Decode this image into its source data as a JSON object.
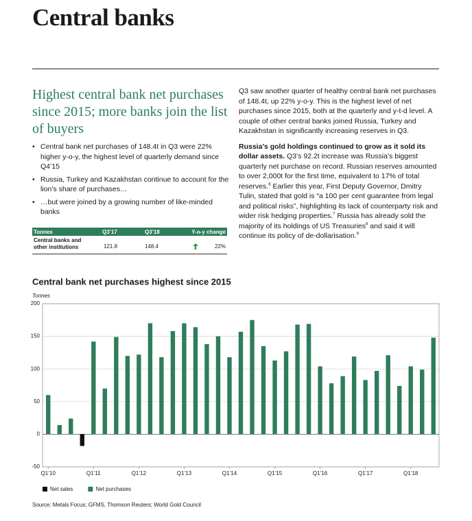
{
  "header": {
    "title": "Central banks"
  },
  "intro": {
    "heading": "Highest central bank net purchases since 2015; more banks join the list of buyers",
    "bullets": [
      "Central bank net purchases of 148.4t in Q3 were 22% higher y-o-y, the highest level of quarterly demand since Q4’15",
      "Russia, Turkey and Kazakhstan continue to account for the lion’s share of purchases…",
      "…but were joined by a growing number of like-minded banks"
    ]
  },
  "table": {
    "header": [
      "Tonnes",
      "Q3’17",
      "Q3’18",
      "Y-o-y change"
    ],
    "rows": [
      [
        "Central banks and other institutions",
        "121.8",
        "148.4",
        "22%"
      ]
    ]
  },
  "body": {
    "paragraphs": [
      [
        {
          "text": "Q3 saw another quarter of healthy central bank net purchases of 148.4t, up 22% y-o-y. This is the highest level of net purchases since 2015, both at the quarterly and y-t-d level. A couple of other central banks joined Russia, Turkey and Kazakhstan in significantly increasing reserves in Q3."
        }
      ],
      [
        {
          "text": "Russia’s gold holdings continued to grow as it sold its dollar assets.",
          "bold": true
        },
        {
          "text": " Q3’s 92.2t increase was Russia’s biggest quarterly net purchase on record. Russian reserves amounted to over 2,000t for the first time, equivalent to 17% of total reserves."
        },
        {
          "text": "6",
          "sup": true
        },
        {
          "text": " Earlier this year, First Deputy Governor, Dmitry Tulin, stated that gold is “a 100 per cent guarantee from legal and political risks”, highlighting its lack of counterparty risk and wider risk hedging properties."
        },
        {
          "text": "7",
          "sup": true
        },
        {
          "text": " Russia has already sold the majority of its holdings of US Treasuries"
        },
        {
          "text": "8",
          "sup": true
        },
        {
          "text": " and said it will continue its policy of de-dollarisation."
        },
        {
          "text": "9",
          "sup": true
        }
      ]
    ]
  },
  "chart_data": {
    "type": "bar",
    "title": "Central bank net purchases highest since 2015",
    "y_label": "Tonnes",
    "categories": [
      "Q1’10",
      null,
      null,
      null,
      "Q1’11",
      null,
      null,
      null,
      "Q1’12",
      null,
      null,
      null,
      "Q1’13",
      null,
      null,
      null,
      "Q1’14",
      null,
      null,
      null,
      "Q1’15",
      null,
      null,
      null,
      "Q1’16",
      null,
      null,
      null,
      "Q1’17",
      null,
      null,
      null,
      "Q1’18",
      null,
      null
    ],
    "series": [
      {
        "name": "Net sales",
        "color": "#111111",
        "values": [
          null,
          null,
          null,
          -18,
          null,
          null,
          null,
          null,
          null,
          null,
          null,
          null,
          null,
          null,
          null,
          null,
          null,
          null,
          null,
          null,
          null,
          null,
          null,
          null,
          null,
          null,
          null,
          null,
          null,
          null,
          null,
          null,
          null,
          null,
          null
        ]
      },
      {
        "name": "Net purchases",
        "color": "#2e7d5b",
        "values": [
          60,
          14,
          24,
          null,
          142,
          70,
          149,
          120,
          122,
          170,
          118,
          158,
          170,
          164,
          138,
          150,
          118,
          157,
          175,
          135,
          113,
          127,
          168,
          169,
          104,
          78,
          89,
          119,
          83,
          97,
          121,
          74,
          104,
          99,
          148
        ]
      }
    ],
    "ylim": [
      -50,
      200
    ],
    "yticks": [
      -50,
      0,
      50,
      100,
      150,
      200
    ],
    "grid": true,
    "legend": "bottom-left"
  },
  "source": "Source: Metals Focus; GFMS, Thomson Reuters; World Gold Council"
}
